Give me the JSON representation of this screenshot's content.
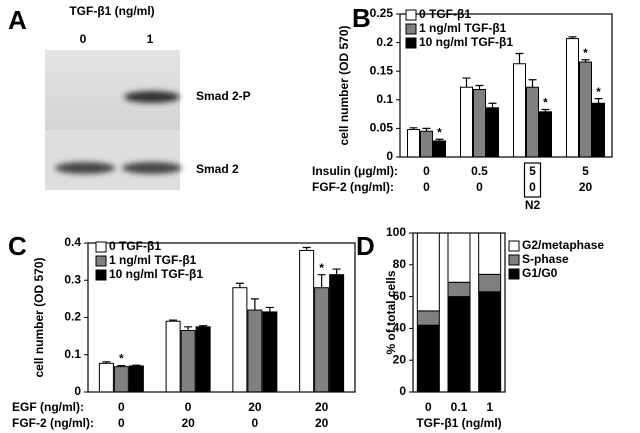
{
  "blot": {
    "panel_label": "A",
    "header": "TGF-β1 (ng/ml)",
    "lanes": [
      "0",
      "1"
    ],
    "bands": [
      "Smad 2-P",
      "Smad 2"
    ]
  },
  "chart_data": [
    {
      "type": "bar",
      "panel_label": "B",
      "ylabel": "cell number (OD 570)",
      "ylim": [
        0,
        0.25
      ],
      "yticks": [
        0,
        0.05,
        0.1,
        0.15,
        0.2,
        0.25
      ],
      "row_labels": [
        "Insulin (μg/ml):",
        "FGF-2 (ng/ml):"
      ],
      "rows": [
        [
          "0",
          "0.5",
          "5",
          "5"
        ],
        [
          "0",
          "0",
          "0",
          "20"
        ]
      ],
      "note": "N2",
      "series": [
        {
          "name": "0 TGF-β1",
          "color": "#ffffff",
          "values": [
            0.048,
            0.122,
            0.163,
            0.207
          ],
          "errors": [
            0.003,
            0.016,
            0.018,
            0.003
          ],
          "stars": [
            null,
            null,
            null,
            null
          ]
        },
        {
          "name": "1 ng/ml TGF-β1",
          "color": "#808080",
          "values": [
            0.045,
            0.118,
            0.122,
            0.166
          ],
          "errors": [
            0.005,
            0.007,
            0.013,
            0.004
          ],
          "stars": [
            null,
            null,
            null,
            "*"
          ]
        },
        {
          "name": "10 ng/ml TGF-β1",
          "color": "#000000",
          "values": [
            0.028,
            0.086,
            0.079,
            0.094
          ],
          "errors": [
            0.003,
            0.008,
            0.004,
            0.008
          ],
          "stars": [
            "*",
            null,
            "*",
            "*"
          ]
        }
      ]
    },
    {
      "type": "bar",
      "panel_label": "C",
      "ylabel": "cell number (OD 570)",
      "ylim": [
        0,
        0.4
      ],
      "yticks": [
        0,
        0.1,
        0.2,
        0.3,
        0.4
      ],
      "row_labels": [
        "EGF (ng/ml):",
        "FGF-2 (ng/ml):"
      ],
      "rows": [
        [
          "0",
          "0",
          "20",
          "20"
        ],
        [
          "0",
          "20",
          "0",
          "20"
        ]
      ],
      "series": [
        {
          "name": "0 TGF-β1",
          "color": "#ffffff",
          "values": [
            0.077,
            0.19,
            0.28,
            0.38
          ],
          "errors": [
            0.004,
            0.003,
            0.012,
            0.008
          ],
          "stars": [
            null,
            null,
            null,
            null
          ]
        },
        {
          "name": "1 ng/ml TGF-β1",
          "color": "#808080",
          "values": [
            0.068,
            0.165,
            0.22,
            0.28
          ],
          "errors": [
            0.003,
            0.01,
            0.03,
            0.035
          ],
          "stars": [
            "*",
            null,
            null,
            "*"
          ]
        },
        {
          "name": "10 ng/ml TGF-β1",
          "color": "#000000",
          "values": [
            0.07,
            0.175,
            0.215,
            0.315
          ],
          "errors": [
            0.002,
            0.003,
            0.012,
            0.015
          ],
          "stars": [
            null,
            null,
            null,
            null
          ]
        }
      ]
    },
    {
      "type": "stacked_bar",
      "panel_label": "D",
      "ylabel": "% of total cells",
      "xlabel": "TGF-β1 (ng/ml)",
      "categories": [
        "0",
        "0.1",
        "1"
      ],
      "ylim": [
        0,
        100
      ],
      "yticks": [
        0,
        20,
        40,
        60,
        80,
        100
      ],
      "series": [
        {
          "name": "G2/metaphase",
          "color": "#ffffff",
          "values": [
            49,
            31,
            26
          ]
        },
        {
          "name": "S-phase",
          "color": "#808080",
          "values": [
            9,
            9,
            11
          ]
        },
        {
          "name": "G1/G0",
          "color": "#000000",
          "values": [
            42,
            60,
            63
          ]
        }
      ]
    }
  ]
}
